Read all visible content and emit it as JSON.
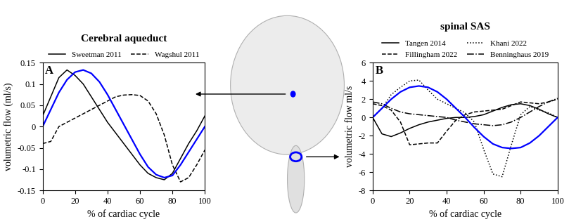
{
  "chart_data": [
    {
      "type": "line",
      "title": "Cerebral aqueduct",
      "annotations": [
        "A"
      ],
      "x_label": "% of cardiac cycle",
      "y_label": "volumetric flow (ml/s)",
      "x": [
        0,
        5,
        10,
        15,
        20,
        25,
        30,
        35,
        40,
        45,
        50,
        55,
        60,
        65,
        70,
        75,
        80,
        85,
        90,
        95,
        100
      ],
      "series": [
        {
          "name": "Sweetman 2011",
          "color": "#000000",
          "line_style": "solid",
          "values": [
            0.025,
            0.07,
            0.115,
            0.133,
            0.12,
            0.1,
            0.07,
            0.04,
            0.01,
            -0.015,
            -0.04,
            -0.065,
            -0.09,
            -0.11,
            -0.12,
            -0.125,
            -0.11,
            -0.075,
            -0.04,
            -0.01,
            0.025
          ]
        },
        {
          "name": "Wagshul 2011",
          "color": "#000000",
          "line_style": "dashed",
          "values": [
            -0.04,
            -0.035,
            0.0,
            0.01,
            0.02,
            0.03,
            0.04,
            0.05,
            0.06,
            0.07,
            0.074,
            0.075,
            0.073,
            0.06,
            0.03,
            -0.02,
            -0.09,
            -0.13,
            -0.12,
            -0.09,
            -0.055
          ]
        },
        {
          "color": "#0000ff",
          "line_style": "solid",
          "values": [
            0,
            0.04,
            0.08,
            0.11,
            0.128,
            0.133,
            0.125,
            0.105,
            0.075,
            0.04,
            0.005,
            -0.03,
            -0.065,
            -0.095,
            -0.113,
            -0.12,
            -0.115,
            -0.09,
            -0.06,
            -0.03,
            0
          ]
        }
      ],
      "xlim": [
        0,
        100
      ],
      "xticks": [
        0,
        20,
        40,
        60,
        80,
        100
      ],
      "ylim": [
        -0.15,
        0.15
      ],
      "yticks": [
        -0.15,
        -0.1,
        -0.05,
        0,
        0.05,
        0.1,
        0.15
      ],
      "legend": "upper center"
    },
    {
      "type": "line",
      "title": "spinal SAS",
      "annotations": [
        "B"
      ],
      "x_label": "% of cardiac cycle",
      "y_label": "volumetric flow ml/s",
      "x": [
        0,
        5,
        10,
        15,
        20,
        25,
        30,
        35,
        40,
        45,
        50,
        55,
        60,
        65,
        70,
        75,
        80,
        85,
        90,
        95,
        100
      ],
      "series": [
        {
          "name": "Tangen 2014",
          "color": "#000000",
          "line_style": "solid",
          "values": [
            0,
            -1.8,
            -2.1,
            -1.7,
            -1.2,
            -0.8,
            -0.5,
            -0.3,
            -0.1,
            0,
            0,
            0.1,
            0.3,
            0.7,
            1.1,
            1.4,
            1.5,
            1.3,
            0.9,
            0.4,
            0
          ]
        },
        {
          "name": "Fillingham 2022",
          "color": "#000000",
          "line_style": "dashed",
          "values": [
            1.5,
            1.3,
            0.8,
            -0.5,
            -3.0,
            -2.9,
            -2.8,
            -2.8,
            -1.5,
            -0.3,
            0.3,
            0.6,
            0.7,
            0.8,
            0.9,
            1.3,
            1.7,
            1.6,
            1.5,
            1.7,
            2.0
          ]
        },
        {
          "name": "Khani 2022",
          "color": "#000000",
          "line_style": "dotted",
          "values": [
            0,
            1.0,
            2.5,
            3.3,
            4.0,
            4.1,
            3.0,
            2.0,
            1.5,
            1.0,
            0.5,
            -0.5,
            -3.5,
            -6.2,
            -6.5,
            -3.0,
            0.3,
            1.2,
            0.8,
            0.5,
            0
          ]
        },
        {
          "name": "Benninghaus 2019",
          "color": "#000000",
          "line_style": "dashdot",
          "values": [
            1.7,
            1.5,
            1.0,
            0.6,
            0.4,
            0.3,
            0.2,
            0.1,
            0,
            -0.3,
            -0.5,
            -0.7,
            -0.8,
            -0.9,
            -0.8,
            -0.5,
            0,
            0.6,
            1.2,
            1.7,
            2.1
          ]
        },
        {
          "color": "#0000ff",
          "line_style": "solid",
          "values": [
            0,
            1.0,
            2.0,
            2.8,
            3.3,
            3.45,
            3.3,
            2.8,
            2.0,
            1.0,
            0,
            -1.1,
            -2.1,
            -2.9,
            -3.3,
            -3.4,
            -3.3,
            -2.8,
            -2.0,
            -1.0,
            0
          ]
        }
      ],
      "xlim": [
        0,
        100
      ],
      "xticks": [
        0,
        20,
        40,
        60,
        80,
        100
      ],
      "ylim": [
        -8,
        6
      ],
      "yticks": [
        -8,
        -6,
        -4,
        -2,
        0,
        2,
        4,
        6
      ],
      "legend": "upper center"
    }
  ]
}
